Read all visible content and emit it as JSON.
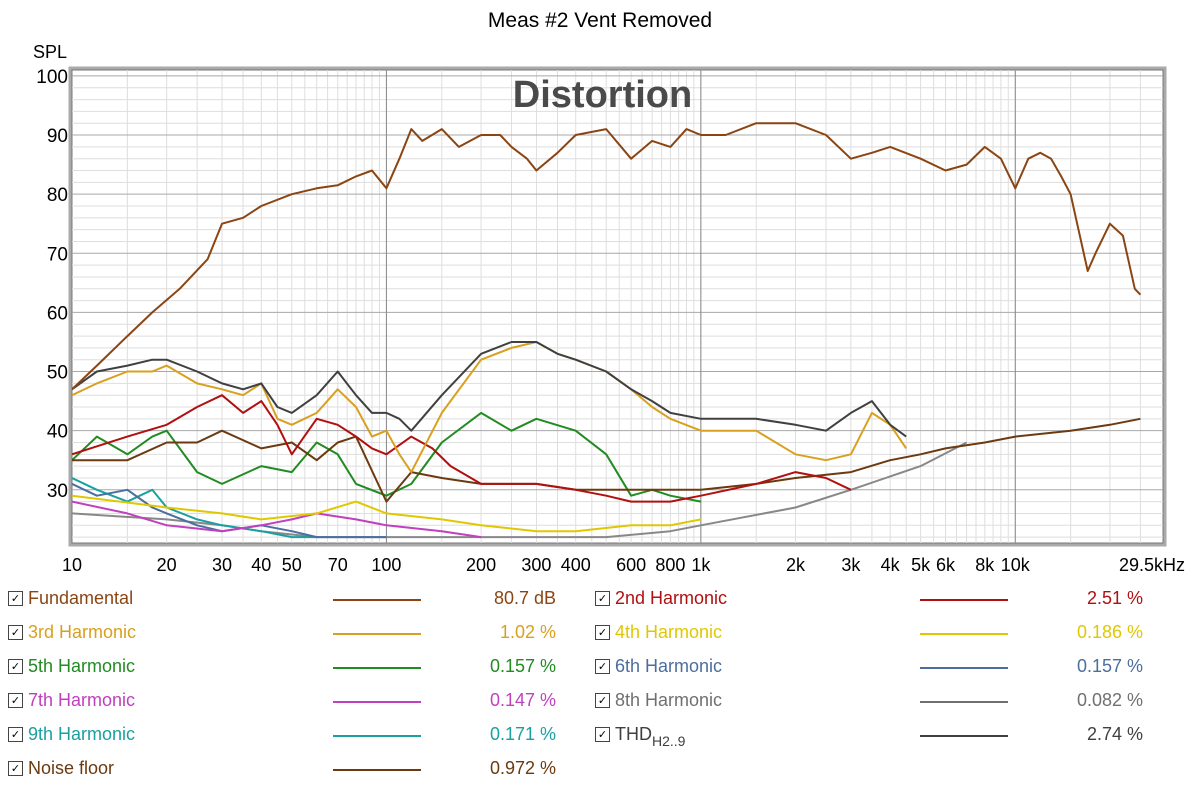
{
  "chart_data": {
    "type": "line",
    "title": "Meas #2 Vent Removed",
    "watermark": "Distortion",
    "ylabel": "SPL",
    "x_scale": "log",
    "xlim": [
      10,
      29500
    ],
    "ylim": [
      21,
      101
    ],
    "grid": true,
    "y_ticks": [
      {
        "v": 100,
        "t": "100"
      },
      {
        "v": 90,
        "t": "90"
      },
      {
        "v": 80,
        "t": "80"
      },
      {
        "v": 70,
        "t": "70"
      },
      {
        "v": 60,
        "t": "60"
      },
      {
        "v": 50,
        "t": "50"
      },
      {
        "v": 40,
        "t": "40"
      },
      {
        "v": 30,
        "t": "30"
      }
    ],
    "x_ticks": [
      {
        "v": 10,
        "t": "10"
      },
      {
        "v": 20,
        "t": "20"
      },
      {
        "v": 30,
        "t": "30"
      },
      {
        "v": 40,
        "t": "40"
      },
      {
        "v": 50,
        "t": "50"
      },
      {
        "v": 70,
        "t": "70"
      },
      {
        "v": 100,
        "t": "100"
      },
      {
        "v": 200,
        "t": "200"
      },
      {
        "v": 300,
        "t": "300"
      },
      {
        "v": 400,
        "t": "400"
      },
      {
        "v": 600,
        "t": "600"
      },
      {
        "v": 800,
        "t": "800"
      },
      {
        "v": 1000,
        "t": "1k"
      },
      {
        "v": 2000,
        "t": "2k"
      },
      {
        "v": 3000,
        "t": "3k"
      },
      {
        "v": 4000,
        "t": "4k"
      },
      {
        "v": 5000,
        "t": "5k"
      },
      {
        "v": 6000,
        "t": "6k"
      },
      {
        "v": 8000,
        "t": "8k"
      },
      {
        "v": 10000,
        "t": "10k"
      },
      {
        "v": 29500,
        "t": "29.5kHz"
      }
    ],
    "series": [
      {
        "name": "Fundamental",
        "color": "#8b4513",
        "value": "80.7 dB",
        "x": [
          10,
          12,
          15,
          18,
          22,
          27,
          30,
          35,
          40,
          50,
          60,
          70,
          80,
          90,
          100,
          110,
          120,
          130,
          150,
          170,
          200,
          230,
          250,
          280,
          300,
          350,
          400,
          500,
          600,
          700,
          800,
          900,
          1000,
          1200,
          1500,
          2000,
          2500,
          3000,
          3500,
          4000,
          5000,
          6000,
          7000,
          8000,
          9000,
          10000,
          11000,
          12000,
          13000,
          14000,
          15000,
          17000,
          18000,
          20000,
          22000,
          24000,
          25000
        ],
        "y": [
          47,
          51,
          56,
          60,
          64,
          69,
          75,
          76,
          78,
          80,
          81,
          81.5,
          83,
          84,
          81,
          86,
          91,
          89,
          91,
          88,
          90,
          90,
          88,
          86,
          84,
          87,
          90,
          91,
          86,
          89,
          88,
          91,
          90,
          90,
          92,
          92,
          90,
          86,
          87,
          88,
          86,
          84,
          85,
          88,
          86,
          81,
          86,
          87,
          86,
          83,
          80,
          67,
          70,
          75,
          73,
          64,
          63
        ]
      },
      {
        "name": "2nd Harmonic",
        "color": "#b01010",
        "value": "2.51 %",
        "x": [
          10,
          15,
          20,
          25,
          30,
          35,
          40,
          45,
          50,
          60,
          70,
          80,
          90,
          100,
          120,
          140,
          160,
          200,
          300,
          400,
          500,
          600,
          800,
          1000,
          1500,
          2000,
          2500,
          3000
        ],
        "y": [
          36,
          39,
          41,
          44,
          46,
          43,
          45,
          41,
          36,
          42,
          41,
          39,
          37,
          36,
          39,
          37,
          34,
          31,
          31,
          30,
          29,
          28,
          28,
          29,
          31,
          33,
          32,
          30
        ]
      },
      {
        "name": "3rd Harmonic",
        "color": "#d9a020",
        "value": "1.02 %",
        "x": [
          10,
          12,
          15,
          18,
          20,
          25,
          30,
          35,
          40,
          45,
          50,
          60,
          70,
          80,
          90,
          100,
          110,
          120,
          150,
          200,
          250,
          300,
          350,
          400,
          500,
          600,
          700,
          800,
          1000,
          1200,
          1500,
          2000,
          2500,
          3000,
          3500,
          4000,
          4500
        ],
        "y": [
          46,
          48,
          50,
          50,
          51,
          48,
          47,
          46,
          48,
          42,
          41,
          43,
          47,
          44,
          39,
          40,
          36,
          33,
          43,
          52,
          54,
          55,
          53,
          52,
          50,
          47,
          44,
          42,
          40,
          40,
          40,
          36,
          35,
          36,
          43,
          41,
          37
        ]
      },
      {
        "name": "4th Harmonic",
        "color": "#e0c800",
        "value": "0.186 %",
        "x": [
          10,
          20,
          30,
          40,
          60,
          80,
          100,
          150,
          200,
          300,
          400,
          600,
          800,
          1000
        ],
        "y": [
          29,
          27,
          26,
          25,
          26,
          28,
          26,
          25,
          24,
          23,
          23,
          24,
          24,
          25
        ]
      },
      {
        "name": "5th Harmonic",
        "color": "#228b22",
        "value": "0.157 %",
        "x": [
          10,
          12,
          15,
          18,
          20,
          25,
          30,
          40,
          50,
          60,
          70,
          80,
          100,
          120,
          150,
          200,
          250,
          300,
          400,
          500,
          600,
          700,
          800,
          1000
        ],
        "y": [
          35,
          39,
          36,
          39,
          40,
          33,
          31,
          34,
          33,
          38,
          36,
          31,
          29,
          31,
          38,
          43,
          40,
          42,
          40,
          36,
          29,
          30,
          29,
          28
        ]
      },
      {
        "name": "6th Harmonic",
        "color": "#4b6e9f",
        "value": "0.157 %",
        "x": [
          10,
          12,
          15,
          18,
          20,
          25,
          30,
          40,
          50,
          60,
          80,
          100
        ],
        "y": [
          31,
          29,
          30,
          27,
          26,
          24,
          23,
          24,
          23,
          22,
          22,
          22
        ]
      },
      {
        "name": "7th Harmonic",
        "color": "#c040c0",
        "value": "0.147 %",
        "x": [
          10,
          15,
          20,
          30,
          40,
          50,
          60,
          80,
          100,
          150,
          200
        ],
        "y": [
          28,
          26,
          24,
          23,
          24,
          25,
          26,
          25,
          24,
          23,
          22
        ]
      },
      {
        "name": "8th Harmonic",
        "color": "#888888",
        "value": "0.082 %",
        "x": [
          10,
          20,
          30,
          40,
          60,
          100,
          200,
          300,
          500,
          800,
          1000,
          2000,
          3000,
          5000,
          7000
        ],
        "y": [
          26,
          25,
          24,
          23,
          22,
          22,
          22,
          22,
          22,
          23,
          24,
          27,
          30,
          34,
          38
        ]
      },
      {
        "name": "9th Harmonic",
        "color": "#1aa0a0",
        "value": "0.171 %",
        "x": [
          10,
          12,
          15,
          18,
          20,
          25,
          30,
          40,
          50,
          60
        ],
        "y": [
          32,
          30,
          28,
          30,
          27,
          25,
          24,
          23,
          22,
          22
        ]
      },
      {
        "name": "THD_H2..9",
        "color": "#404040",
        "value": "2.74 %",
        "x": [
          10,
          12,
          15,
          18,
          20,
          25,
          30,
          35,
          40,
          45,
          50,
          60,
          70,
          80,
          90,
          100,
          110,
          120,
          150,
          200,
          250,
          300,
          350,
          400,
          500,
          600,
          700,
          800,
          1000,
          1200,
          1500,
          2000,
          2500,
          3000,
          3500,
          4000,
          4500
        ],
        "y": [
          47,
          50,
          51,
          52,
          52,
          50,
          48,
          47,
          48,
          44,
          43,
          46,
          50,
          46,
          43,
          43,
          42,
          40,
          46,
          53,
          55,
          55,
          53,
          52,
          50,
          47,
          45,
          43,
          42,
          42,
          42,
          41,
          40,
          43,
          45,
          41,
          39
        ]
      },
      {
        "name": "Noise floor",
        "color": "#6b3a10",
        "value": "0.972 %",
        "x": [
          10,
          15,
          20,
          25,
          30,
          40,
          50,
          60,
          70,
          80,
          100,
          120,
          150,
          200,
          300,
          400,
          500,
          600,
          800,
          1000,
          1500,
          2000,
          3000,
          4000,
          5000,
          6000,
          8000,
          10000,
          15000,
          20000,
          25000
        ],
        "y": [
          35,
          35,
          38,
          38,
          40,
          37,
          38,
          35,
          38,
          39,
          28,
          33,
          32,
          31,
          31,
          30,
          30,
          30,
          30,
          30,
          31,
          32,
          33,
          35,
          36,
          37,
          38,
          39,
          40,
          41,
          42
        ]
      }
    ]
  },
  "legend": [
    {
      "label": "Fundamental",
      "value": "80.7 dB",
      "color": "#8b4513",
      "checked": "✓"
    },
    {
      "label": "2nd Harmonic",
      "value": "2.51 %",
      "color": "#b01010",
      "checked": "✓"
    },
    {
      "label": "3rd Harmonic",
      "value": "1.02 %",
      "color": "#d9a020",
      "checked": "✓"
    },
    {
      "label": "4th Harmonic",
      "value": "0.186 %",
      "color": "#e0c800",
      "checked": "✓"
    },
    {
      "label": "5th Harmonic",
      "value": "0.157 %",
      "color": "#228b22",
      "checked": "✓"
    },
    {
      "label": "6th Harmonic",
      "value": "0.157 %",
      "color": "#4b6e9f",
      "checked": "✓"
    },
    {
      "label": "7th Harmonic",
      "value": "0.147 %",
      "color": "#c040c0",
      "checked": "✓"
    },
    {
      "label": "8th Harmonic",
      "value": "0.082 %",
      "color": "#707070",
      "checked": "✓"
    },
    {
      "label": "9th Harmonic",
      "value": "0.171 %",
      "color": "#1aa0a0",
      "checked": "✓"
    },
    {
      "label": "THD",
      "label_sub": "H2..9",
      "value": "2.74 %",
      "color": "#404040",
      "checked": "✓"
    },
    {
      "label": "Noise floor",
      "value": "0.972 %",
      "color": "#6b3a10",
      "checked": "✓"
    }
  ]
}
